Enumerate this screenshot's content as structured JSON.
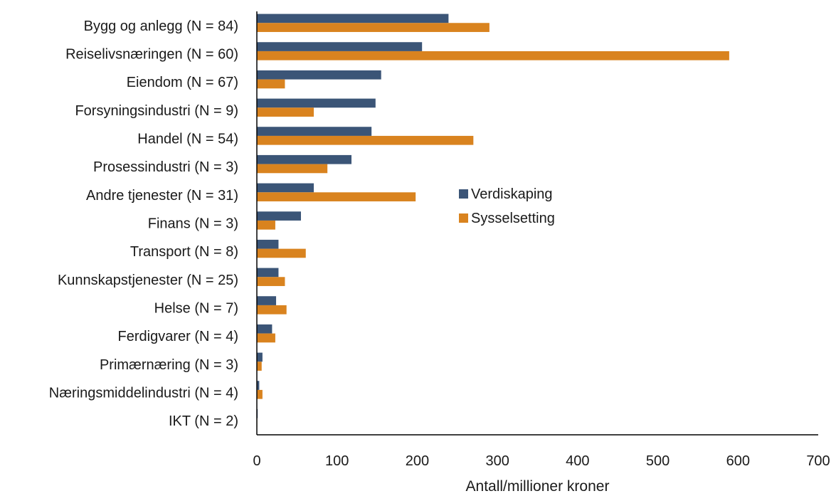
{
  "chart_data": {
    "type": "bar",
    "orientation": "horizontal",
    "categories": [
      "Bygg og anlegg (N = 84)",
      "Reiselivsnæringen (N = 60)",
      "Eiendom (N = 67)",
      "Forsyningsindustri (N = 9)",
      "Handel (N = 54)",
      "Prosessindustri (N = 3)",
      "Andre tjenester (N = 31)",
      "Finans (N = 3)",
      "Transport (N = 8)",
      "Kunnskapstjenester (N = 25)",
      "Helse (N = 7)",
      "Ferdigvarer (N = 4)",
      "Primærnæring (N = 3)",
      "Næringsmiddelindustri (N = 4)",
      "IKT (N = 2)"
    ],
    "series": [
      {
        "name": "Verdiskaping",
        "color": "#3b5577",
        "values": [
          239,
          206,
          155,
          148,
          143,
          118,
          71,
          55,
          27,
          27,
          24,
          19,
          7,
          3,
          1
        ]
      },
      {
        "name": "Sysselsetting",
        "color": "#d9831f",
        "values": [
          290,
          589,
          35,
          71,
          270,
          88,
          198,
          23,
          61,
          35,
          37,
          23,
          6,
          7,
          0.5
        ]
      }
    ],
    "xlabel": "Antall/millioner kroner",
    "xlim": [
      0,
      700
    ],
    "xticks": [
      0,
      100,
      200,
      300,
      400,
      500,
      600,
      700
    ],
    "legend_position": "center-right",
    "grid": false
  }
}
